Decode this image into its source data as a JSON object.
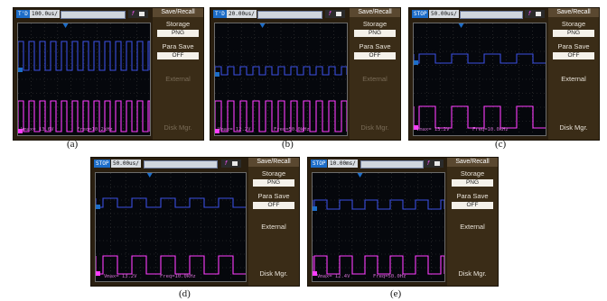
{
  "colors": {
    "ch1": "#3b4fe0",
    "ch2": "#ff3dff",
    "accent": "#1d6dc8"
  },
  "menu": {
    "title": "Save/Recall",
    "storage": "Storage",
    "png": "PNG",
    "para_save": "Para Save",
    "off": "OFF",
    "external": "External",
    "disk": "Disk Mgr."
  },
  "panels": [
    {
      "caption": "(a)",
      "mode": "T'D",
      "timebase": "100.0us/",
      "vmax": "Vmax= 13.6V",
      "freq": "Freq=10.2kHz"
    },
    {
      "caption": "(b)",
      "mode": "T'D",
      "timebase": "20.00us/",
      "vmax": "Vmax= 12.2V",
      "freq": "Freq=50.0kHz"
    },
    {
      "caption": "(c)",
      "mode": "STOP",
      "timebase": "50.00us/",
      "vmax": "Vmax= 13.2V",
      "freq": "Freq=10.0kHz"
    },
    {
      "caption": "(d)",
      "mode": "STOP",
      "timebase": "50.00us/",
      "vmax": "Vmax= 13.2V",
      "freq": "Freq=10.0kHz"
    },
    {
      "caption": "(e)",
      "mode": "STOP",
      "timebase": "10.00ms/",
      "vmax": "Vmax= 12.4V",
      "freq": "Freq=50.0Hz"
    }
  ]
}
